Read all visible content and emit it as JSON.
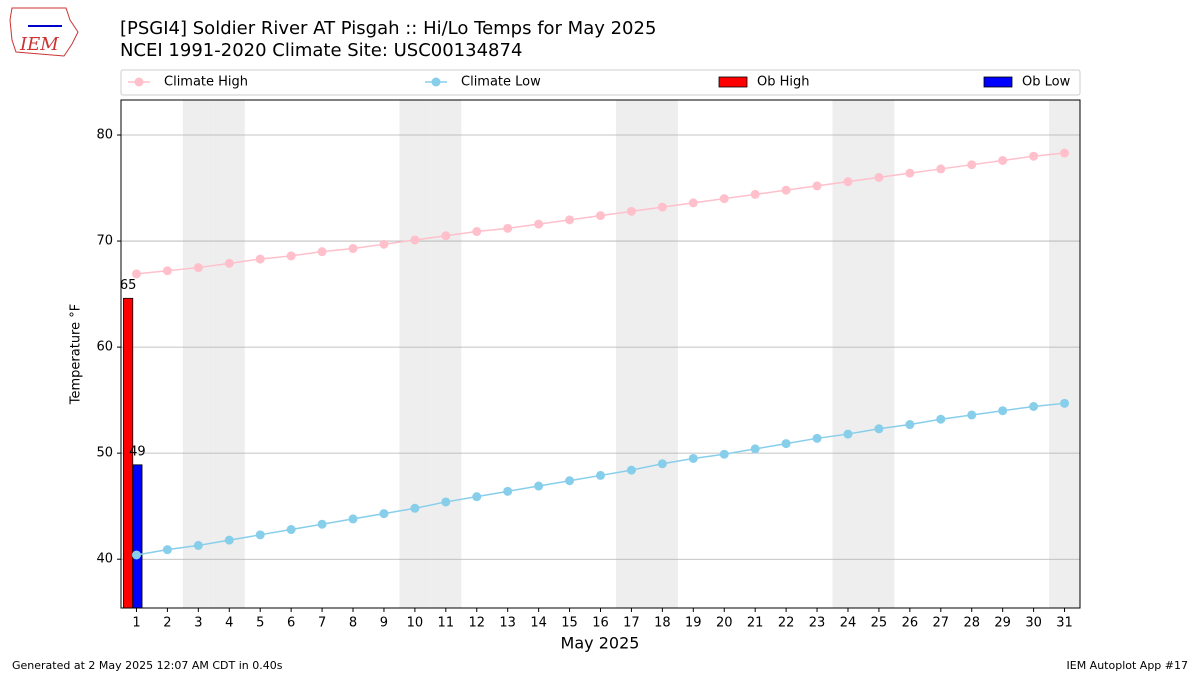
{
  "chart_data": {
    "type": "line",
    "title": "[PSGI4] Soldier River  AT Pisgah :: Hi/Lo Temps for May 2025",
    "subtitle": "NCEI 1991-2020 Climate Site: USC00134874",
    "xlabel": "May 2025",
    "ylabel": "Temperature °F",
    "logo_text": "IEM",
    "footer_left": "Generated at 2 May 2025 12:07 AM CDT in 0.40s",
    "footer_right": "IEM Autoplot App #17",
    "x": [
      1,
      2,
      3,
      4,
      5,
      6,
      7,
      8,
      9,
      10,
      11,
      12,
      13,
      14,
      15,
      16,
      17,
      18,
      19,
      20,
      21,
      22,
      23,
      24,
      25,
      26,
      27,
      28,
      29,
      30,
      31
    ],
    "xticks": [
      1,
      2,
      3,
      4,
      5,
      6,
      7,
      8,
      9,
      10,
      11,
      12,
      13,
      14,
      15,
      16,
      17,
      18,
      19,
      20,
      21,
      22,
      23,
      24,
      25,
      26,
      27,
      28,
      29,
      30,
      31
    ],
    "xlim": [
      0.5,
      31.5
    ],
    "ylim": [
      35.4,
      83.3
    ],
    "yticks": [
      40,
      50,
      60,
      70,
      80
    ],
    "grid": true,
    "shaded_days": [
      3,
      4,
      10,
      11,
      17,
      18,
      24,
      25,
      31
    ],
    "series": [
      {
        "name": "Climate High",
        "kind": "line",
        "color": "#ffc0cb",
        "values": [
          66.9,
          67.2,
          67.5,
          67.9,
          68.3,
          68.6,
          69.0,
          69.3,
          69.7,
          70.1,
          70.5,
          70.9,
          71.2,
          71.6,
          72.0,
          72.4,
          72.8,
          73.2,
          73.6,
          74.0,
          74.4,
          74.8,
          75.2,
          75.6,
          76.0,
          76.4,
          76.8,
          77.2,
          77.6,
          78.0,
          78.3
        ]
      },
      {
        "name": "Climate Low",
        "kind": "line",
        "color": "#87ceeb",
        "values": [
          40.4,
          40.9,
          41.3,
          41.8,
          42.3,
          42.8,
          43.3,
          43.8,
          44.3,
          44.8,
          45.4,
          45.9,
          46.4,
          46.9,
          47.4,
          47.9,
          48.4,
          49.0,
          49.5,
          49.9,
          50.4,
          50.9,
          51.4,
          51.8,
          52.3,
          52.7,
          53.2,
          53.6,
          54.0,
          54.4,
          54.7
        ]
      },
      {
        "name": "Ob High",
        "kind": "bar",
        "color": "#ff0000",
        "values": [
          64.6,
          null,
          null,
          null,
          null,
          null,
          null,
          null,
          null,
          null,
          null,
          null,
          null,
          null,
          null,
          null,
          null,
          null,
          null,
          null,
          null,
          null,
          null,
          null,
          null,
          null,
          null,
          null,
          null,
          null,
          null
        ],
        "value_labels": [
          "65",
          null,
          null,
          null,
          null,
          null,
          null,
          null,
          null,
          null,
          null,
          null,
          null,
          null,
          null,
          null,
          null,
          null,
          null,
          null,
          null,
          null,
          null,
          null,
          null,
          null,
          null,
          null,
          null,
          null,
          null
        ]
      },
      {
        "name": "Ob Low",
        "kind": "bar",
        "color": "#0000ff",
        "values": [
          48.9,
          null,
          null,
          null,
          null,
          null,
          null,
          null,
          null,
          null,
          null,
          null,
          null,
          null,
          null,
          null,
          null,
          null,
          null,
          null,
          null,
          null,
          null,
          null,
          null,
          null,
          null,
          null,
          null,
          null,
          null
        ],
        "value_labels": [
          "49",
          null,
          null,
          null,
          null,
          null,
          null,
          null,
          null,
          null,
          null,
          null,
          null,
          null,
          null,
          null,
          null,
          null,
          null,
          null,
          null,
          null,
          null,
          null,
          null,
          null,
          null,
          null,
          null,
          null,
          null
        ]
      }
    ]
  }
}
